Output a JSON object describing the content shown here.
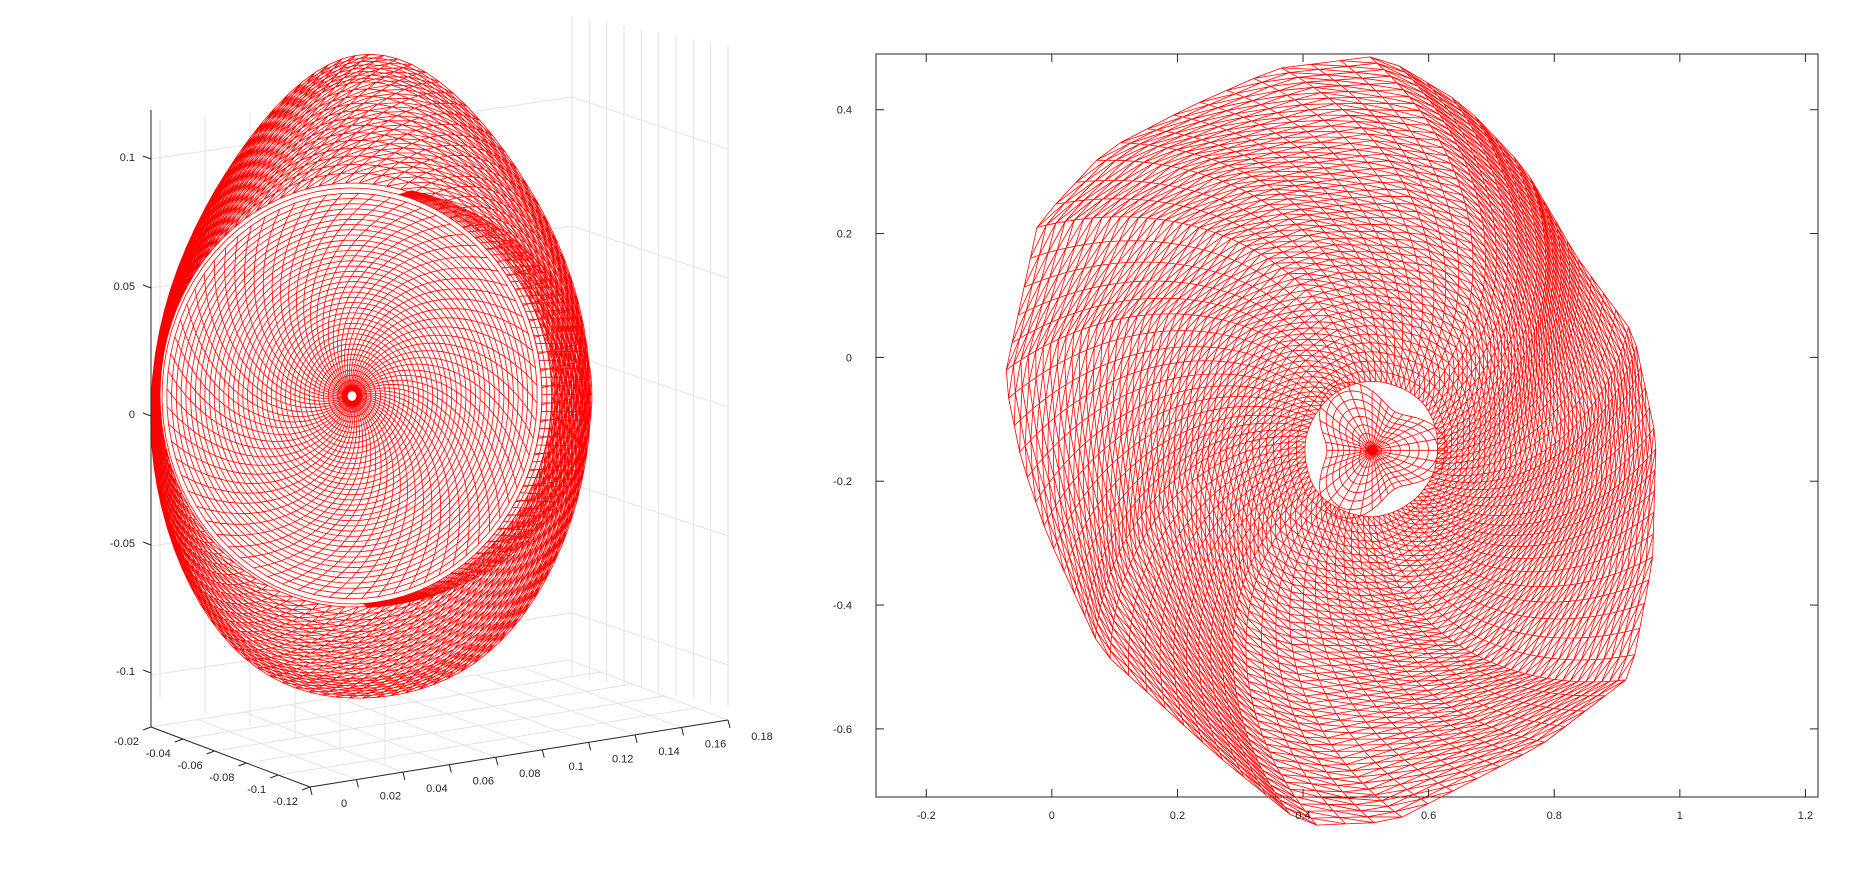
{
  "figure": {
    "mesh_color": "#ff0000",
    "axis_color": "#262626",
    "grid_color": "#e3e3e3"
  },
  "chart_data": [
    {
      "type": "surface",
      "view": "3d",
      "grid": true,
      "axes": {
        "z": {
          "ticks": [
            0.1,
            0.05,
            0,
            -0.05,
            -0.1
          ],
          "tick_labels": [
            "0.1",
            "0.05",
            "0",
            "-0.05",
            "-0.1"
          ]
        },
        "y": {
          "ticks": [
            -0.02,
            -0.04,
            -0.06,
            -0.08,
            -0.1,
            -0.12
          ],
          "tick_labels": [
            "-0.02",
            "-0.04",
            "-0.06",
            "-0.08",
            "-0.1",
            "-0.12"
          ]
        },
        "x": {
          "ticks": [
            0,
            0.02,
            0.04,
            0.06,
            0.08,
            0.1,
            0.12,
            0.14,
            0.16,
            0.18
          ],
          "tick_labels": [
            "0",
            "0.02",
            "0.04",
            "0.06",
            "0.08",
            "0.1",
            "0.12",
            "0.14",
            "0.16",
            "0.18"
          ]
        }
      },
      "series": [
        {
          "color": "#ff0000"
        }
      ]
    },
    {
      "type": "mesh",
      "view": "2d",
      "grid": false,
      "xlim": [
        -0.28,
        1.22
      ],
      "ylim": [
        -0.71,
        0.49
      ],
      "xticks": [
        -0.2,
        0,
        0.2,
        0.4,
        0.6,
        0.8,
        1,
        1.2
      ],
      "xtick_labels": [
        "-0.2",
        "0",
        "0.2",
        "0.4",
        "0.6",
        "0.8",
        "1",
        "1.2"
      ],
      "yticks": [
        0.4,
        0.2,
        0,
        -0.2,
        -0.4,
        -0.6
      ],
      "ytick_labels": [
        "0.4",
        "0.2",
        "0",
        "-0.2",
        "-0.4",
        "-0.6"
      ],
      "series": [
        {
          "color": "#ff0000"
        }
      ]
    }
  ]
}
